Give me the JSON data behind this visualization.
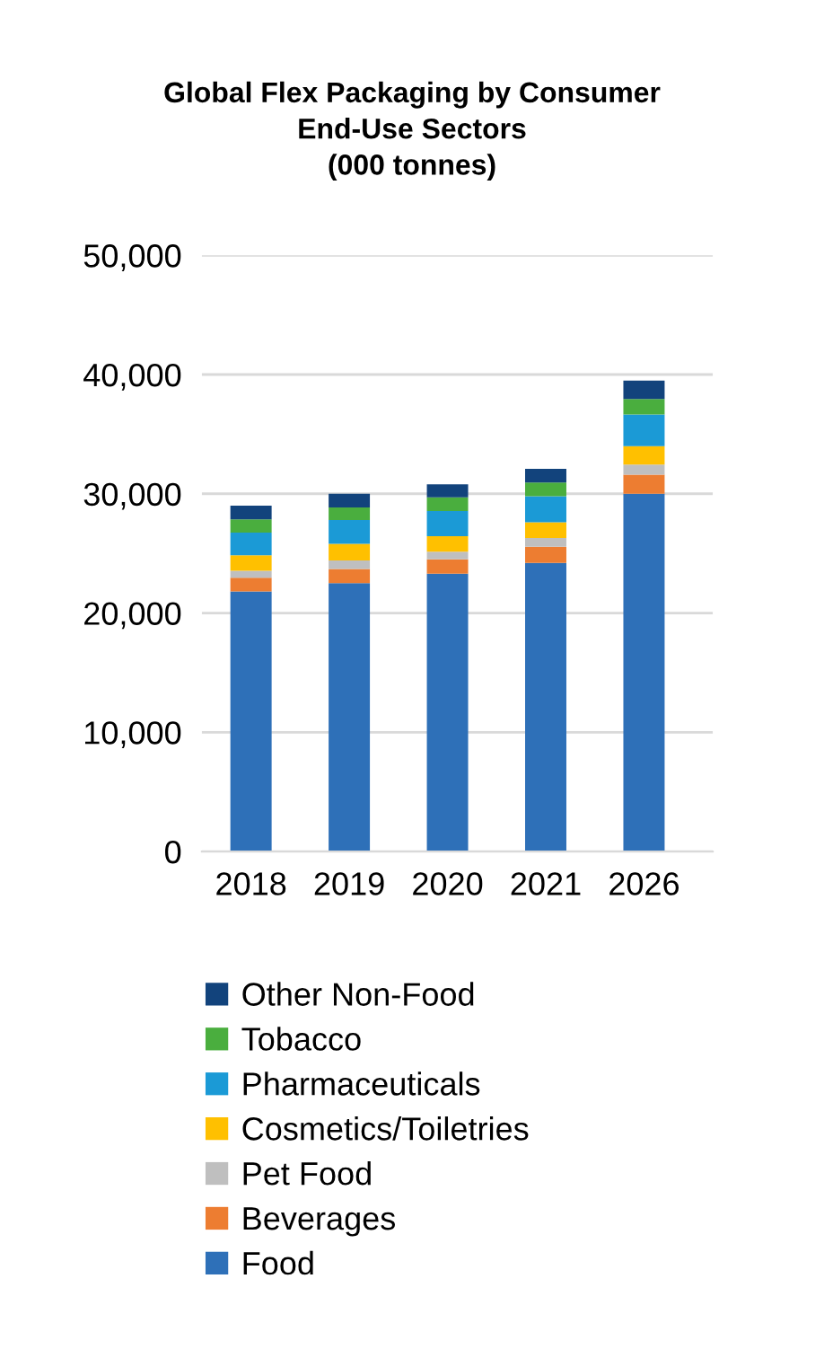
{
  "chart_data": {
    "type": "bar",
    "title": "Global Flex Packaging by Consumer\nEnd-Use Sectors\n(000 tonnes)",
    "categories": [
      "2018",
      "2019",
      "2020",
      "2021",
      "2026"
    ],
    "stacked": true,
    "series": [
      {
        "name": "Food",
        "color": "#2e70b8",
        "values": [
          21800,
          22500,
          23300,
          24200,
          30000
        ]
      },
      {
        "name": "Beverages",
        "color": "#ed7d31",
        "values": [
          1150,
          1200,
          1200,
          1350,
          1600
        ]
      },
      {
        "name": "Pet Food",
        "color": "#bfbfbf",
        "values": [
          600,
          700,
          650,
          750,
          850
        ]
      },
      {
        "name": "Cosmetics/Toiletries",
        "color": "#ffc000",
        "values": [
          1300,
          1400,
          1300,
          1300,
          1550
        ]
      },
      {
        "name": "Pharmaceuticals",
        "color": "#1b9ad6",
        "values": [
          1900,
          2000,
          2100,
          2200,
          2650
        ]
      },
      {
        "name": "Tobacco",
        "color": "#4aae3e",
        "values": [
          1100,
          1050,
          1150,
          1150,
          1300
        ]
      },
      {
        "name": "Other Non-Food",
        "color": "#12437c",
        "values": [
          1150,
          1150,
          1100,
          1150,
          1550
        ]
      }
    ],
    "ylim": [
      0,
      50000
    ],
    "yticks": [
      {
        "value": 0,
        "label": "0"
      },
      {
        "value": 10000,
        "label": "10,000"
      },
      {
        "value": 20000,
        "label": "20,000"
      },
      {
        "value": 30000,
        "label": "30,000"
      },
      {
        "value": 40000,
        "label": "40,000"
      },
      {
        "value": 50000,
        "label": "50,000"
      }
    ],
    "grid": "y",
    "legend": "bottom"
  }
}
